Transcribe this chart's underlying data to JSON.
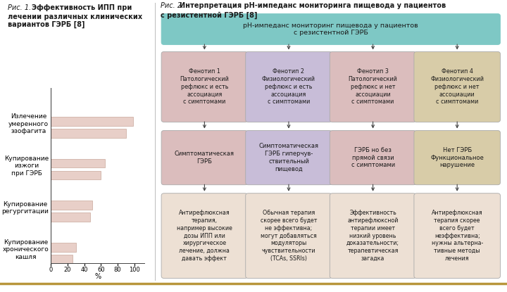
{
  "fig1_title_italic": "Рис. 1.",
  "fig1_title_bold": " Эффективность ИПП при\nлечении различных клинических\nвариантов ГЭРБ [8]",
  "bar_categories": [
    "Излечение\nумеренного\nэзофагита",
    "Купирование\nизжоги\nпри ГЭРБ",
    "Купирование\nрегургитации",
    "Купирование\nхронического\nкашля"
  ],
  "bar_values_low": [
    90,
    60,
    47,
    26
  ],
  "bar_values_high": [
    98,
    65,
    50,
    30
  ],
  "bar_color": "#e8cfc8",
  "bar_edge_color": "#c8a89a",
  "xlabel": "%",
  "fig2_title_italic": "Рис. 2.",
  "fig2_title_bold": "Интерпретация рН-импеданс мониторинга пищевода у пациентов\nс резистентной ГЭРБ [8]",
  "top_box_text": "рН-импеданс мониторинг пищевода у пациентов\nс резистентной ГЭРБ",
  "top_box_color": "#7ec8c5",
  "phenotype_colors": [
    "#dbbdbd",
    "#c8bdd8",
    "#dbbdbd",
    "#d8cca8"
  ],
  "phenotype_texts": [
    "Фенотип 1\nПатологический\nрефлюкс и есть\nассоциация\nс симптомами",
    "Фенотип 2\nФизиологический\nрефлюкс и есть\nассоциация\nс симптомами",
    "Фенотип 3\nПатологический\nрефлюкс и нет\nассоциации\nс симптомами",
    "Фенотип 4\nФизиологический\nрефлюкс и нет\nассоциации\nс симптомами"
  ],
  "middle_box_colors": [
    "#dbbdbd",
    "#c8bdd8",
    "#dbbdbd",
    "#d8cca8"
  ],
  "middle_box_texts": [
    "Симптоматическая\nГЭРБ",
    "Симптоматическая\nГЭРБ гиперчув-\nствительный\nпищевод",
    "ГЭРБ но без\nпрямой связи\nс симптомами",
    "Нет ГЭРБ\nФункциональное\nнарушение"
  ],
  "bottom_box_colors": [
    "#ede0d4",
    "#ede0d4",
    "#ede0d4",
    "#ede0d4"
  ],
  "bottom_box_texts": [
    "Антирефлюксная\nтерапия,\nнапример высокие\nдозы ИПП или\nхирургическое\nлечение, должна\nдавать эффект",
    "Обычная терапия\nскорее всего будет\nне эффективна;\nмогут добавляться\nмодуляторы\nчувствительности\n(TCAs, SSRIs)",
    "Эффективность\nантирефлюксной\nтерапии имеет\nнизкий уровень\nдоказательности;\nтерапевтическая\nзагадка",
    "Антирефлюксная\nтерапия скорее\nвсего будет\nнеэффективна;\nнужны альтерна-\nтивные методы\nлечения"
  ],
  "bg_color": "#ffffff",
  "text_color": "#1a1a1a",
  "divider_color": "#b8963c",
  "arrow_color": "#444444"
}
